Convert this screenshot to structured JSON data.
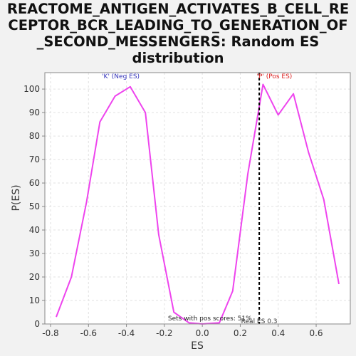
{
  "chart_data": {
    "type": "line",
    "title_lines": [
      "REACTOME_ANTIGEN_ACTIVATES_B_CELL_RE",
      "CEPTOR_BCR_LEADING_TO_GENERATION_OF",
      "_SECOND_MESSENGERS: Random ES",
      "distribution"
    ],
    "xlabel": "ES",
    "ylabel": "P(ES)",
    "xlim": [
      -0.83,
      0.78
    ],
    "ylim": [
      0,
      107
    ],
    "x_ticks": [
      -0.8,
      -0.6,
      -0.4,
      -0.2,
      0.0,
      0.2,
      0.4,
      0.6
    ],
    "x_tick_labels": [
      "-0.8",
      "-0.6",
      "-0.4",
      "-0.2",
      "0.0",
      "0.2",
      "0.4",
      "0.6"
    ],
    "y_ticks": [
      0,
      10,
      20,
      30,
      40,
      50,
      60,
      70,
      80,
      90,
      100
    ],
    "y_tick_labels": [
      "0",
      "10",
      "20",
      "30",
      "40",
      "50",
      "60",
      "70",
      "80",
      "90",
      "100"
    ],
    "grid": true,
    "series": [
      {
        "color": "#ee44ee",
        "x": [
          -0.77,
          -0.69,
          -0.61,
          -0.54,
          -0.46,
          -0.38,
          -0.3,
          -0.23,
          -0.15,
          -0.07,
          0.0,
          0.09,
          0.16,
          0.24,
          0.32,
          0.4,
          0.48,
          0.56,
          0.64,
          0.72
        ],
        "y": [
          3,
          20,
          52,
          86,
          97,
          101,
          90,
          38,
          5,
          0.5,
          0,
          0.5,
          14,
          64,
          102,
          89,
          98,
          73,
          53,
          17
        ]
      }
    ],
    "real_es": {
      "x": 0.3,
      "label": "Real ES 0.3",
      "color": "#000000"
    },
    "annotations": [
      {
        "text": "'K' (Neg ES)",
        "x": -0.43,
        "y": 104.5,
        "color": "#3333bb"
      },
      {
        "text": "'P' (Pos ES)",
        "x": 0.38,
        "y": 104.5,
        "color": "#dd2222"
      },
      {
        "text": "Sets with pos scores: 51%",
        "x": 0.04,
        "y": 1.5,
        "color": "#222222"
      }
    ]
  }
}
